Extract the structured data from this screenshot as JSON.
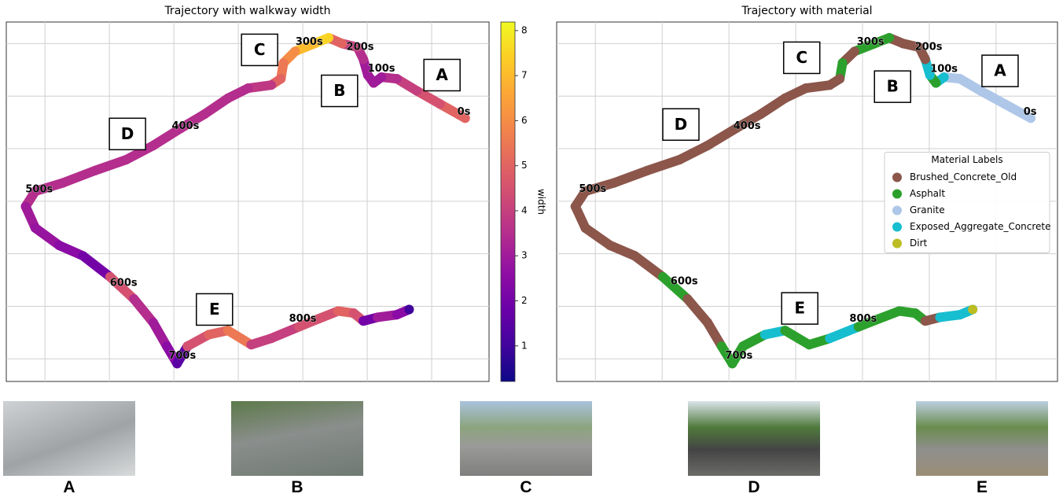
{
  "chart_data": [
    {
      "type": "trajectory",
      "title": "Trajectory with walkway width",
      "x": [
        6.52,
        6.13,
        5.77,
        5.46,
        5.22,
        5.1,
        5.01,
        4.94,
        4.85,
        4.61,
        4.4,
        4.18,
        3.88,
        3.7,
        3.66,
        3.51,
        3.15,
        2.84,
        2.48,
        2.11,
        1.68,
        1.26,
        0.77,
        0.28,
        -0.15,
        -0.3,
        -0.15,
        0.22,
        0.59,
        1.01,
        1.38,
        1.68,
        1.89,
        2.05,
        2.21,
        2.54,
        2.84,
        3.2,
        3.51,
        3.94,
        4.24,
        4.55,
        4.79,
        4.94,
        5.16,
        5.46,
        5.65
      ],
      "y": [
        4.58,
        4.85,
        5.1,
        5.33,
        5.36,
        5.25,
        5.4,
        5.7,
        5.93,
        6.0,
        6.11,
        6.0,
        5.85,
        5.63,
        5.33,
        5.21,
        5.15,
        4.96,
        4.66,
        4.39,
        4.06,
        3.79,
        3.58,
        3.35,
        3.19,
        2.9,
        2.49,
        2.16,
        1.96,
        1.56,
        1.14,
        0.69,
        0.24,
        -0.09,
        0.24,
        0.46,
        0.54,
        0.27,
        0.39,
        0.61,
        0.76,
        0.91,
        0.87,
        0.72,
        0.79,
        0.84,
        0.94
      ],
      "width": [
        5,
        4.5,
        4,
        3.5,
        3,
        3,
        3,
        3.5,
        4,
        5,
        7.5,
        7,
        6,
        5.5,
        5,
        3.8,
        3.5,
        3.5,
        3.5,
        3.5,
        3.5,
        3.5,
        3.5,
        3.5,
        3.5,
        3,
        2.8,
        2.5,
        2,
        4.5,
        3.5,
        3,
        2.5,
        1.5,
        4.5,
        5,
        5.5,
        4,
        4,
        4.5,
        4.5,
        5,
        4.5,
        2,
        3,
        2.5,
        1
      ],
      "xlim": [
        -0.6,
        6.89
      ],
      "ylim": [
        -0.43,
        6.41
      ],
      "grid": true,
      "colorbar": {
        "label": "width",
        "colormap": "plasma",
        "lim": [
          0.21,
          8.19
        ],
        "ticks": [
          1,
          2,
          3,
          4,
          5,
          6,
          7,
          8
        ]
      },
      "annotations": [
        {
          "text": "0s",
          "x": 6.5,
          "y": 4.7
        },
        {
          "text": "100s",
          "x": 5.22,
          "y": 5.52
        },
        {
          "text": "200s",
          "x": 4.89,
          "y": 5.93
        },
        {
          "text": "300s",
          "x": 4.1,
          "y": 6.03
        },
        {
          "text": "400s",
          "x": 2.18,
          "y": 4.43
        },
        {
          "text": "500s",
          "x": -0.09,
          "y": 3.22
        },
        {
          "text": "600s",
          "x": 1.22,
          "y": 1.44
        },
        {
          "text": "700s",
          "x": 2.13,
          "y": 0.06
        },
        {
          "text": "800s",
          "x": 4.0,
          "y": 0.76
        }
      ],
      "box_labels": [
        {
          "text": "A",
          "x": 6.16,
          "y": 5.4
        },
        {
          "text": "B",
          "x": 4.57,
          "y": 5.1
        },
        {
          "text": "C",
          "x": 3.33,
          "y": 5.88
        },
        {
          "text": "D",
          "x": 1.28,
          "y": 4.28
        },
        {
          "text": "E",
          "x": 2.63,
          "y": 0.94
        }
      ]
    },
    {
      "type": "trajectory",
      "title": "Trajectory with material",
      "x": [
        6.52,
        6.13,
        5.77,
        5.46,
        5.22,
        5.1,
        5.01,
        4.94,
        4.85,
        4.61,
        4.4,
        4.18,
        3.88,
        3.7,
        3.66,
        3.51,
        3.15,
        2.84,
        2.48,
        2.11,
        1.68,
        1.26,
        0.77,
        0.28,
        -0.15,
        -0.3,
        -0.15,
        0.22,
        0.59,
        1.01,
        1.38,
        1.68,
        1.89,
        2.05,
        2.21,
        2.54,
        2.84,
        3.2,
        3.51,
        3.94,
        4.24,
        4.55,
        4.79,
        4.94,
        5.16,
        5.46,
        5.65
      ],
      "y": [
        4.58,
        4.85,
        5.1,
        5.33,
        5.36,
        5.25,
        5.4,
        5.7,
        5.93,
        6.0,
        6.11,
        6.0,
        5.85,
        5.63,
        5.33,
        5.21,
        5.15,
        4.96,
        4.66,
        4.39,
        4.06,
        3.79,
        3.58,
        3.35,
        3.19,
        2.9,
        2.49,
        2.16,
        1.96,
        1.56,
        1.14,
        0.69,
        0.24,
        -0.09,
        0.24,
        0.46,
        0.54,
        0.27,
        0.39,
        0.61,
        0.76,
        0.91,
        0.87,
        0.72,
        0.79,
        0.84,
        0.94
      ],
      "material": [
        "Granite",
        "Granite",
        "Granite",
        "Granite",
        "Exposed_Aggregate_Concrete",
        "Asphalt",
        "Exposed_Aggregate_Concrete",
        "Brushed_Concrete_Old",
        "Brushed_Concrete_Old",
        "Brushed_Concrete_Old",
        "Asphalt",
        "Asphalt",
        "Brushed_Concrete_Old",
        "Asphalt",
        "Brushed_Concrete_Old",
        "Brushed_Concrete_Old",
        "Brushed_Concrete_Old",
        "Brushed_Concrete_Old",
        "Brushed_Concrete_Old",
        "Brushed_Concrete_Old",
        "Brushed_Concrete_Old",
        "Brushed_Concrete_Old",
        "Brushed_Concrete_Old",
        "Brushed_Concrete_Old",
        "Brushed_Concrete_Old",
        "Brushed_Concrete_Old",
        "Brushed_Concrete_Old",
        "Brushed_Concrete_Old",
        "Brushed_Concrete_Old",
        "Asphalt",
        "Brushed_Concrete_Old",
        "Brushed_Concrete_Old",
        "Asphalt",
        "Asphalt",
        "Asphalt",
        "Exposed_Aggregate_Concrete",
        "Asphalt",
        "Asphalt",
        "Exposed_Aggregate_Concrete",
        "Asphalt",
        "Asphalt",
        "Asphalt",
        "Asphalt",
        "Brushed_Concrete_Old",
        "Exposed_Aggregate_Concrete",
        "Exposed_Aggregate_Concrete",
        "Dirt"
      ],
      "xlim": [
        -0.58,
        6.92
      ],
      "ylim": [
        -0.43,
        6.41
      ],
      "grid": true,
      "legend": {
        "title": "Material Labels",
        "position": "center right"
      },
      "series": [
        {
          "name": "Brushed_Concrete_Old",
          "color": "#8c564b"
        },
        {
          "name": "Asphalt",
          "color": "#2ca02c"
        },
        {
          "name": "Granite",
          "color": "#aec7e8"
        },
        {
          "name": "Exposed_Aggregate_Concrete",
          "color": "#17becf"
        },
        {
          "name": "Dirt",
          "color": "#bcbd22"
        }
      ],
      "annotations": [
        {
          "text": "0s",
          "x": 6.51,
          "y": 4.7
        },
        {
          "text": "100s",
          "x": 5.22,
          "y": 5.51
        },
        {
          "text": "200s",
          "x": 4.99,
          "y": 5.93
        },
        {
          "text": "300s",
          "x": 4.12,
          "y": 6.03
        },
        {
          "text": "400s",
          "x": 2.27,
          "y": 4.43
        },
        {
          "text": "500s",
          "x": -0.04,
          "y": 3.23
        },
        {
          "text": "600s",
          "x": 1.33,
          "y": 1.47
        },
        {
          "text": "700s",
          "x": 2.15,
          "y": 0.06
        },
        {
          "text": "800s",
          "x": 4.01,
          "y": 0.76
        }
      ],
      "box_labels": [
        {
          "text": "A",
          "x": 6.06,
          "y": 5.48
        },
        {
          "text": "B",
          "x": 4.45,
          "y": 5.18
        },
        {
          "text": "C",
          "x": 3.09,
          "y": 5.73
        },
        {
          "text": "D",
          "x": 1.28,
          "y": 4.46
        },
        {
          "text": "E",
          "x": 3.06,
          "y": 0.96
        }
      ]
    }
  ],
  "photos": {
    "labels": [
      "A",
      "B",
      "C",
      "D",
      "E"
    ]
  }
}
